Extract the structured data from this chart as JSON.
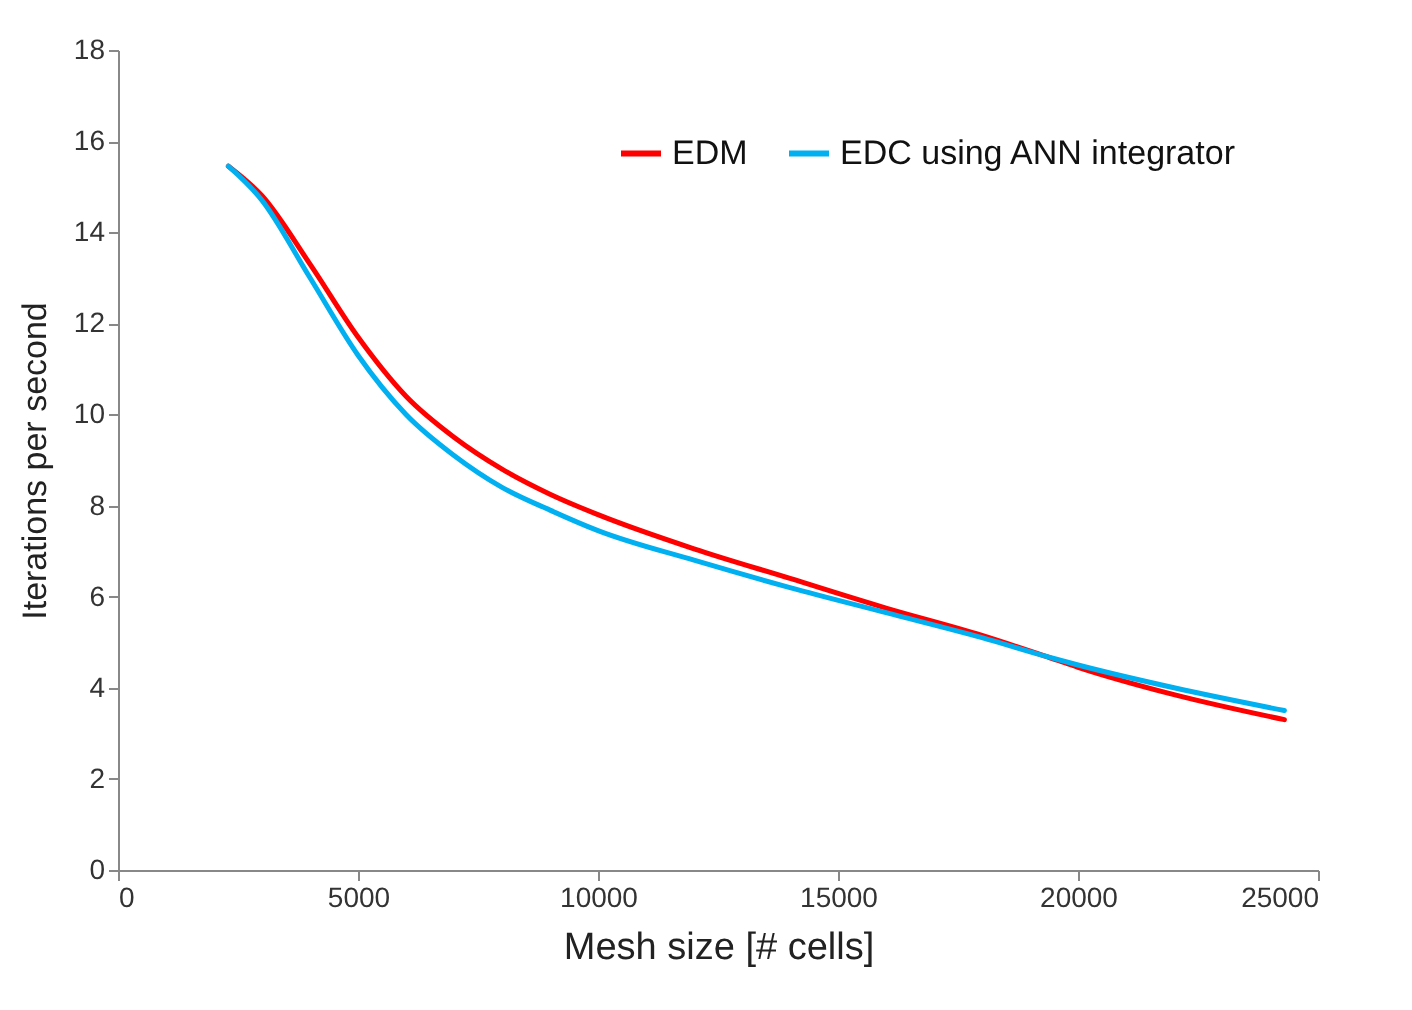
{
  "chart_data": {
    "type": "line",
    "xlabel": "Mesh size [# cells]",
    "ylabel": "Iterations per second",
    "x": [
      2300,
      3000,
      4000,
      5000,
      6000,
      7000,
      8000,
      9000,
      10000,
      12000,
      14000,
      16000,
      18000,
      19300,
      20000,
      22000,
      24300
    ],
    "series": [
      {
        "name": "EDM",
        "color": "#ff0000",
        "values": [
          15.45,
          14.8,
          13.3,
          11.7,
          10.4,
          9.5,
          8.8,
          8.25,
          7.8,
          7.05,
          6.4,
          5.75,
          5.15,
          4.7,
          4.45,
          3.85,
          3.3
        ]
      },
      {
        "name": "EDC using ANN integrator",
        "color": "#00b0f0",
        "values": [
          15.45,
          14.7,
          13.0,
          11.3,
          10.0,
          9.1,
          8.4,
          7.9,
          7.45,
          6.8,
          6.2,
          5.65,
          5.1,
          4.7,
          4.5,
          4.0,
          3.5
        ]
      }
    ],
    "xlim": [
      0,
      25000
    ],
    "xticks": [
      0,
      5000,
      10000,
      15000,
      20000,
      25000
    ],
    "ylim": [
      0,
      18
    ],
    "yticks": [
      0,
      2,
      4,
      6,
      8,
      10,
      12,
      14,
      16,
      18
    ],
    "grid": false,
    "legend": "top right"
  }
}
